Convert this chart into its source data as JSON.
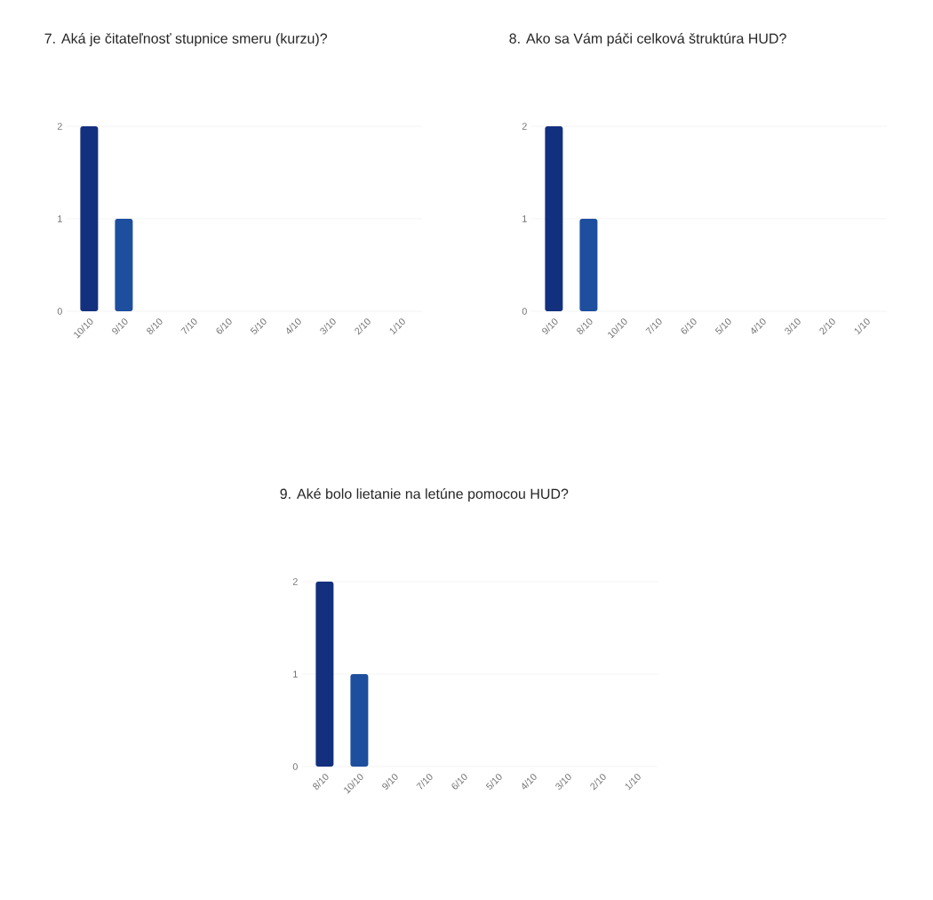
{
  "chart_data": [
    {
      "type": "bar",
      "title": "7. Aká je čitateľnosť stupnice smeru (kurzu)?",
      "categories": [
        "10/10",
        "9/10",
        "8/10",
        "7/10",
        "6/10",
        "5/10",
        "4/10",
        "3/10",
        "2/10",
        "1/10"
      ],
      "values": [
        2,
        1,
        0,
        0,
        0,
        0,
        0,
        0,
        0,
        0
      ],
      "colors": [
        "#13307f",
        "#1e4e9e",
        "#1e4e9e",
        "#1e4e9e",
        "#1e4e9e",
        "#1e4e9e",
        "#1e4e9e",
        "#1e4e9e",
        "#1e4e9e",
        "#1e4e9e"
      ],
      "ylim": [
        0,
        2
      ],
      "yticks": [
        0,
        1,
        2
      ],
      "grid": "y"
    },
    {
      "type": "bar",
      "title": "8. Ako sa Vám páči celková štruktúra HUD?",
      "categories": [
        "9/10",
        "8/10",
        "10/10",
        "7/10",
        "6/10",
        "5/10",
        "4/10",
        "3/10",
        "2/10",
        "1/10"
      ],
      "values": [
        2,
        1,
        0,
        0,
        0,
        0,
        0,
        0,
        0,
        0
      ],
      "colors": [
        "#13307f",
        "#1e4e9e",
        "#1e4e9e",
        "#1e4e9e",
        "#1e4e9e",
        "#1e4e9e",
        "#1e4e9e",
        "#1e4e9e",
        "#1e4e9e",
        "#1e4e9e"
      ],
      "ylim": [
        0,
        2
      ],
      "yticks": [
        0,
        1,
        2
      ],
      "grid": "y"
    },
    {
      "type": "bar",
      "title": "9. Aké bolo lietanie na letúne pomocou HUD?",
      "categories": [
        "8/10",
        "10/10",
        "9/10",
        "7/10",
        "6/10",
        "5/10",
        "4/10",
        "3/10",
        "2/10",
        "1/10"
      ],
      "values": [
        2,
        1,
        0,
        0,
        0,
        0,
        0,
        0,
        0,
        0
      ],
      "colors": [
        "#13307f",
        "#1e4e9e",
        "#1e4e9e",
        "#1e4e9e",
        "#1e4e9e",
        "#1e4e9e",
        "#1e4e9e",
        "#1e4e9e",
        "#1e4e9e",
        "#1e4e9e"
      ],
      "ylim": [
        0,
        2
      ],
      "yticks": [
        0,
        1,
        2
      ],
      "grid": "y"
    }
  ]
}
